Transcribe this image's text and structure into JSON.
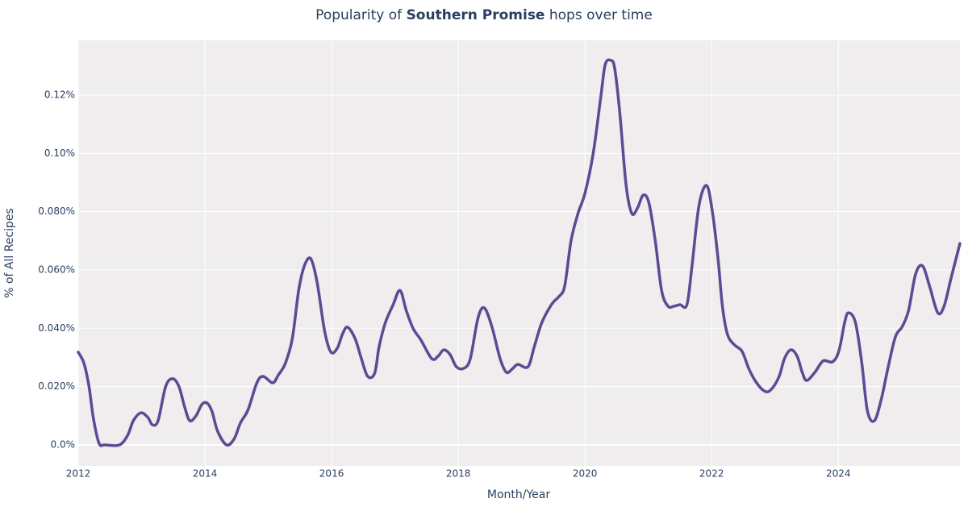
{
  "chart_data": {
    "type": "line",
    "title_parts": [
      "Popularity of",
      "Southern Promise",
      "hops over time"
    ],
    "xlabel": "Month/Year",
    "ylabel": "% of All Recipes",
    "xlim": [
      2012,
      2025.92
    ],
    "xticks": [
      2012,
      2014,
      2016,
      2018,
      2020,
      2022,
      2024
    ],
    "ylim": [
      -0.0072,
      0.1388
    ],
    "yticks": [
      {
        "value": 0,
        "label": "0.0%"
      },
      {
        "value": 0.02,
        "label": "0.020%"
      },
      {
        "value": 0.04,
        "label": "0.040%"
      },
      {
        "value": 0.06,
        "label": "0.060%"
      },
      {
        "value": 0.08,
        "label": "0.080%"
      },
      {
        "value": 0.1,
        "label": "0.10%"
      },
      {
        "value": 0.12,
        "label": "0.12%"
      }
    ],
    "grid": true,
    "background": "#efeded",
    "x": [
      2012,
      2012.09,
      2012.17,
      2012.24,
      2012.33,
      2012.42,
      2012.65,
      2012.78,
      2012.87,
      2012.99,
      2013.1,
      2013.17,
      2013.26,
      2013.38,
      2013.49,
      2013.59,
      2013.68,
      2013.76,
      2013.86,
      2013.95,
      2014.03,
      2014.11,
      2014.2,
      2014.34,
      2014.46,
      2014.56,
      2014.68,
      2014.82,
      2014.92,
      2015.07,
      2015.16,
      2015.27,
      2015.38,
      2015.48,
      2015.57,
      2015.67,
      2015.77,
      2015.89,
      2015.99,
      2016.09,
      2016.17,
      2016.25,
      2016.37,
      2016.47,
      2016.57,
      2016.68,
      2016.75,
      2016.85,
      2016.97,
      2017.08,
      2017.18,
      2017.29,
      2017.41,
      2017.58,
      2017.68,
      2017.77,
      2017.87,
      2017.97,
      2018.09,
      2018.19,
      2018.31,
      2018.41,
      2018.53,
      2018.66,
      2018.76,
      2018.85,
      2018.94,
      2019.1,
      2019.2,
      2019.32,
      2019.48,
      2019.59,
      2019.68,
      2019.78,
      2019.89,
      2020,
      2020.13,
      2020.25,
      2020.32,
      2020.41,
      2020.47,
      2020.55,
      2020.65,
      2020.74,
      2020.83,
      2020.92,
      2021.01,
      2021.11,
      2021.21,
      2021.31,
      2021.41,
      2021.5,
      2021.61,
      2021.69,
      2021.8,
      2021.92,
      2022.01,
      2022.1,
      2022.17,
      2022.25,
      2022.36,
      2022.48,
      2022.59,
      2022.7,
      2022.83,
      2022.93,
      2023.06,
      2023.15,
      2023.25,
      2023.35,
      2023.43,
      2023.5,
      2023.63,
      2023.76,
      2023.91,
      2024.01,
      2024.1,
      2024.16,
      2024.27,
      2024.37,
      2024.46,
      2024.57,
      2024.68,
      2024.78,
      2024.9,
      2025.01,
      2025.11,
      2025.22,
      2025.33,
      2025.44,
      2025.57,
      2025.67,
      2025.78,
      2025.92
    ],
    "series": [
      {
        "name": "Southern Promise",
        "color": "#5e4a94",
        "values": [
          0.0318,
          0.028,
          0.02,
          0.009,
          0.0005,
          0,
          0,
          0.0033,
          0.0083,
          0.011,
          0.0094,
          0.0069,
          0.0083,
          0.02,
          0.0227,
          0.02,
          0.013,
          0.0083,
          0.01,
          0.0138,
          0.0144,
          0.0116,
          0.0047,
          0,
          0.002,
          0.0075,
          0.012,
          0.0213,
          0.0235,
          0.0213,
          0.024,
          0.028,
          0.0365,
          0.053,
          0.0614,
          0.0639,
          0.0559,
          0.039,
          0.0318,
          0.0332,
          0.0379,
          0.0404,
          0.0365,
          0.0296,
          0.0235,
          0.0246,
          0.0337,
          0.042,
          0.048,
          0.053,
          0.046,
          0.0398,
          0.036,
          0.0296,
          0.0304,
          0.0326,
          0.031,
          0.0268,
          0.0263,
          0.0296,
          0.0434,
          0.047,
          0.0406,
          0.0296,
          0.0249,
          0.026,
          0.0276,
          0.0268,
          0.0337,
          0.042,
          0.0484,
          0.0509,
          0.0545,
          0.07,
          0.0794,
          0.0863,
          0.1,
          0.1194,
          0.1305,
          0.1319,
          0.1291,
          0.1139,
          0.089,
          0.0794,
          0.0813,
          0.0857,
          0.083,
          0.07,
          0.053,
          0.0476,
          0.0476,
          0.0481,
          0.0481,
          0.0614,
          0.0821,
          0.089,
          0.0802,
          0.0641,
          0.0476,
          0.0379,
          0.0343,
          0.0321,
          0.026,
          0.0216,
          0.0185,
          0.0188,
          0.0232,
          0.0296,
          0.0326,
          0.0304,
          0.0249,
          0.0221,
          0.0249,
          0.0288,
          0.0285,
          0.0323,
          0.042,
          0.0453,
          0.042,
          0.0282,
          0.0116,
          0.0083,
          0.0158,
          0.026,
          0.037,
          0.0406,
          0.0462,
          0.0586,
          0.0614,
          0.0545,
          0.0453,
          0.0476,
          0.0572,
          0.0691
        ]
      }
    ]
  }
}
